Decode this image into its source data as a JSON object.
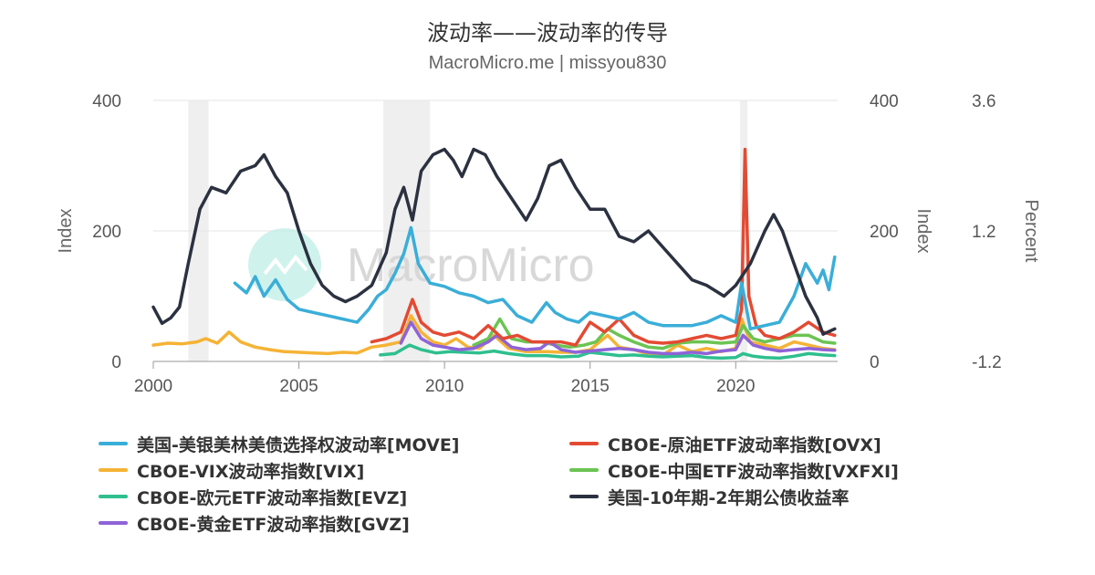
{
  "title": "波动率——波动率的传导",
  "subtitle": "MacroMicro.me | missyou830",
  "watermark": "MacroMicro",
  "colors": {
    "move": "#3aaed8",
    "ovx": "#e34a33",
    "vix": "#f5b335",
    "vxfxi": "#6bc452",
    "evz": "#2fbf8f",
    "yield": "#2b3140",
    "gvz": "#8e63d8",
    "recession": "#efefef"
  },
  "chart_data": {
    "type": "line",
    "x_range": [
      2000,
      2023.5
    ],
    "x_ticks": [
      "2000",
      "2005",
      "2010",
      "2015",
      "2020"
    ],
    "y_left": {
      "label": "Index",
      "range": [
        0,
        400
      ],
      "ticks": [
        "0",
        "200",
        "400"
      ]
    },
    "y_right1": {
      "label": "Index",
      "range": [
        0,
        400
      ],
      "ticks": [
        "0",
        "200",
        "400"
      ]
    },
    "y_right2": {
      "label": "Percent",
      "range": [
        -1.2,
        3.6
      ],
      "ticks": [
        "-1.2",
        "1.2",
        "3.6"
      ]
    },
    "recessions": [
      [
        2001.2,
        2001.9
      ],
      [
        2007.9,
        2009.5
      ],
      [
        2020.15,
        2020.4
      ]
    ],
    "grid": true,
    "legend_position": "bottom",
    "series": [
      {
        "key": "move",
        "name": "美国-美银美林美债选择权波动率[MOVE]",
        "axis": "left",
        "x": [
          2002.8,
          2003.2,
          2003.5,
          2003.8,
          2004.2,
          2004.6,
          2005.0,
          2005.5,
          2006.0,
          2006.5,
          2007.0,
          2007.4,
          2007.7,
          2008.0,
          2008.3,
          2008.6,
          2008.85,
          2009.1,
          2009.5,
          2010.0,
          2010.5,
          2011.0,
          2011.5,
          2012.0,
          2012.5,
          2013.0,
          2013.5,
          2013.8,
          2014.2,
          2014.6,
          2015.0,
          2015.5,
          2016.0,
          2016.5,
          2017.0,
          2017.5,
          2018.0,
          2018.5,
          2019.0,
          2019.5,
          2020.0,
          2020.2,
          2020.5,
          2021.0,
          2021.5,
          2022.0,
          2022.4,
          2022.8,
          2023.0,
          2023.2,
          2023.4
        ],
        "y": [
          120,
          105,
          130,
          100,
          125,
          95,
          80,
          75,
          70,
          65,
          60,
          80,
          100,
          110,
          135,
          165,
          205,
          150,
          120,
          115,
          105,
          100,
          90,
          95,
          70,
          60,
          90,
          75,
          65,
          60,
          75,
          70,
          65,
          75,
          60,
          55,
          55,
          55,
          60,
          70,
          60,
          120,
          50,
          55,
          60,
          100,
          150,
          120,
          140,
          110,
          160
        ]
      },
      {
        "key": "ovx",
        "name": "CBOE-原油ETF波动率指数[OVX]",
        "axis": "left",
        "x": [
          2007.5,
          2008.0,
          2008.5,
          2008.9,
          2009.2,
          2009.6,
          2010.0,
          2010.5,
          2011.0,
          2011.5,
          2012.0,
          2012.5,
          2013.0,
          2013.5,
          2014.0,
          2014.5,
          2015.0,
          2015.5,
          2016.0,
          2016.5,
          2017.0,
          2017.5,
          2018.0,
          2018.5,
          2019.0,
          2019.5,
          2020.0,
          2020.2,
          2020.32,
          2020.45,
          2020.7,
          2021.0,
          2021.5,
          2022.0,
          2022.5,
          2023.0,
          2023.4
        ],
        "y": [
          30,
          35,
          45,
          95,
          60,
          45,
          40,
          45,
          35,
          55,
          35,
          40,
          30,
          30,
          30,
          25,
          60,
          45,
          65,
          40,
          30,
          28,
          30,
          35,
          40,
          35,
          40,
          80,
          325,
          100,
          55,
          40,
          35,
          45,
          60,
          45,
          40
        ]
      },
      {
        "key": "vix",
        "name": "CBOE-VIX波动率指数[VIX]",
        "axis": "left",
        "x": [
          2000.0,
          2000.5,
          2001.0,
          2001.5,
          2001.8,
          2002.2,
          2002.6,
          2003.0,
          2003.5,
          2004.0,
          2004.5,
          2005.0,
          2005.5,
          2006.0,
          2006.5,
          2007.0,
          2007.5,
          2008.0,
          2008.5,
          2008.85,
          2009.2,
          2009.6,
          2010.0,
          2010.4,
          2010.8,
          2011.2,
          2011.7,
          2012.2,
          2012.8,
          2013.5,
          2014.0,
          2014.5,
          2015.0,
          2015.6,
          2016.0,
          2016.5,
          2017.0,
          2017.5,
          2018.0,
          2018.5,
          2019.0,
          2019.5,
          2020.0,
          2020.2,
          2020.5,
          2021.0,
          2021.5,
          2022.0,
          2022.5,
          2023.0,
          2023.4
        ],
        "y": [
          25,
          28,
          27,
          30,
          35,
          28,
          45,
          30,
          22,
          18,
          15,
          14,
          13,
          12,
          14,
          13,
          22,
          25,
          30,
          70,
          45,
          30,
          25,
          35,
          22,
          20,
          40,
          20,
          15,
          15,
          14,
          14,
          18,
          40,
          22,
          18,
          11,
          10,
          25,
          15,
          20,
          15,
          20,
          65,
          30,
          25,
          20,
          30,
          25,
          20,
          18
        ]
      },
      {
        "key": "vxfxi",
        "name": "CBOE-中国ETF波动率指数[VXFXI]",
        "axis": "left",
        "x": [
          2011.0,
          2011.5,
          2011.9,
          2012.3,
          2012.8,
          2013.3,
          2013.8,
          2014.3,
          2014.8,
          2015.2,
          2015.6,
          2016.0,
          2016.5,
          2017.0,
          2017.5,
          2018.0,
          2018.5,
          2019.0,
          2019.5,
          2020.0,
          2020.25,
          2020.6,
          2021.0,
          2021.5,
          2022.0,
          2022.5,
          2023.0,
          2023.4
        ],
        "y": [
          25,
          35,
          65,
          35,
          30,
          30,
          25,
          22,
          25,
          30,
          50,
          40,
          30,
          22,
          20,
          28,
          30,
          30,
          28,
          30,
          55,
          35,
          30,
          35,
          40,
          40,
          30,
          28
        ]
      },
      {
        "key": "evz",
        "name": "CBOE-欧元ETF波动率指数[EVZ]",
        "axis": "left",
        "x": [
          2007.8,
          2008.3,
          2008.8,
          2009.2,
          2009.7,
          2010.2,
          2010.7,
          2011.2,
          2011.7,
          2012.2,
          2012.8,
          2013.5,
          2014.0,
          2014.6,
          2015.0,
          2015.6,
          2016.0,
          2016.5,
          2017.0,
          2017.5,
          2018.0,
          2018.5,
          2019.0,
          2019.5,
          2020.0,
          2020.25,
          2020.6,
          2021.0,
          2021.5,
          2022.0,
          2022.5,
          2023.0,
          2023.4
        ],
        "y": [
          10,
          12,
          25,
          18,
          13,
          15,
          14,
          13,
          16,
          12,
          9,
          9,
          7,
          8,
          14,
          11,
          9,
          10,
          8,
          7,
          8,
          9,
          6,
          5,
          6,
          12,
          8,
          6,
          5,
          8,
          12,
          10,
          9
        ]
      },
      {
        "key": "gvz",
        "name": "CBOE-黄金ETF波动率指数[GVZ]",
        "axis": "left",
        "x": [
          2008.5,
          2008.85,
          2009.2,
          2009.6,
          2010.0,
          2010.5,
          2011.0,
          2011.5,
          2011.8,
          2012.3,
          2012.8,
          2013.3,
          2013.6,
          2014.0,
          2014.5,
          2015.0,
          2015.5,
          2016.0,
          2016.5,
          2017.0,
          2017.5,
          2018.0,
          2018.5,
          2019.0,
          2019.5,
          2020.0,
          2020.25,
          2020.6,
          2021.0,
          2021.5,
          2022.0,
          2022.5,
          2023.0,
          2023.4
        ],
        "y": [
          28,
          60,
          35,
          25,
          22,
          18,
          20,
          30,
          40,
          22,
          18,
          20,
          30,
          18,
          14,
          16,
          18,
          20,
          18,
          14,
          12,
          12,
          14,
          12,
          16,
          18,
          40,
          25,
          20,
          16,
          18,
          20,
          18,
          17
        ]
      },
      {
        "key": "yield",
        "name": "美国-10年期-2年期公债收益率",
        "axis": "right2",
        "x": [
          2000.0,
          2000.3,
          2000.6,
          2000.9,
          2001.2,
          2001.6,
          2002.0,
          2002.5,
          2003.0,
          2003.5,
          2003.8,
          2004.2,
          2004.6,
          2005.0,
          2005.4,
          2005.8,
          2006.2,
          2006.6,
          2007.0,
          2007.5,
          2008.0,
          2008.3,
          2008.6,
          2008.9,
          2009.2,
          2009.6,
          2010.0,
          2010.3,
          2010.6,
          2011.0,
          2011.4,
          2011.8,
          2012.3,
          2012.8,
          2013.2,
          2013.6,
          2014.0,
          2014.5,
          2015.0,
          2015.5,
          2016.0,
          2016.5,
          2017.0,
          2017.5,
          2018.0,
          2018.5,
          2019.0,
          2019.6,
          2020.0,
          2020.5,
          2021.0,
          2021.3,
          2021.6,
          2022.0,
          2022.4,
          2022.8,
          2023.0,
          2023.4
        ],
        "y": [
          -0.2,
          -0.5,
          -0.4,
          -0.2,
          0.6,
          1.6,
          2.0,
          1.9,
          2.3,
          2.4,
          2.6,
          2.2,
          1.9,
          1.2,
          0.6,
          0.2,
          0.0,
          -0.1,
          0.0,
          0.2,
          0.8,
          1.6,
          2.0,
          1.4,
          2.3,
          2.6,
          2.7,
          2.5,
          2.2,
          2.7,
          2.6,
          2.2,
          1.8,
          1.4,
          1.8,
          2.4,
          2.5,
          2.0,
          1.6,
          1.6,
          1.1,
          1.0,
          1.2,
          0.9,
          0.6,
          0.3,
          0.2,
          0.0,
          0.2,
          0.6,
          1.2,
          1.5,
          1.2,
          0.6,
          0.0,
          -0.4,
          -0.7,
          -0.6
        ]
      }
    ]
  }
}
